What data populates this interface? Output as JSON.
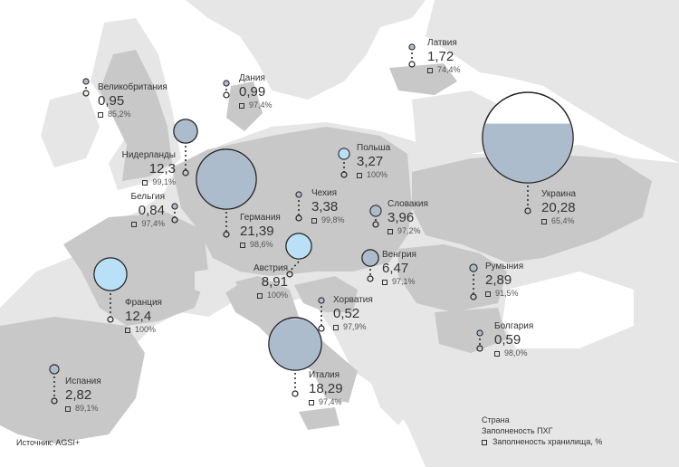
{
  "source": "Источник: AGSI+",
  "legend": {
    "line1": "Страна",
    "line2": "Заполненость ПХГ",
    "line3": "Заполненость хранилища, %"
  },
  "colors": {
    "land_highlight": "#c8c8c8",
    "land_other": "#e6e6e6",
    "sea": "#ffffff",
    "bubble_blue": "#b9e0f7",
    "bubble_gray": "#adbccd"
  },
  "countries": [
    {
      "name": "Латвия",
      "value": "1,72",
      "pct": "74,4%",
      "fill": 0.744
    },
    {
      "name": "Великобритания",
      "value": "0,95",
      "pct": "85,2%",
      "fill": 0.852
    },
    {
      "name": "Дания",
      "value": "0,99",
      "pct": "97,4%",
      "fill": 0.974
    },
    {
      "name": "Нидерланды",
      "value": "12,3",
      "pct": "99,1%",
      "fill": 0.991
    },
    {
      "name": "Польша",
      "value": "3,27",
      "pct": "100%",
      "fill": 1.0
    },
    {
      "name": "Бельгия",
      "value": "0,84",
      "pct": "97,4%",
      "fill": 0.974
    },
    {
      "name": "Германия",
      "value": "21,39",
      "pct": "98,6%",
      "fill": 0.986
    },
    {
      "name": "Чехия",
      "value": "3,38",
      "pct": "99,8%",
      "fill": 0.998
    },
    {
      "name": "Словакия",
      "value": "3,96",
      "pct": "97,2%",
      "fill": 0.972
    },
    {
      "name": "Украина",
      "value": "20,28",
      "pct": "65,4%",
      "fill": 0.654
    },
    {
      "name": "Венгрия",
      "value": "6,47",
      "pct": "97,1%",
      "fill": 0.971
    },
    {
      "name": "Австрия",
      "value": "8,91",
      "pct": "100%",
      "fill": 1.0
    },
    {
      "name": "Франция",
      "value": "12,4",
      "pct": "100%",
      "fill": 1.0
    },
    {
      "name": "Румыния",
      "value": "2,89",
      "pct": "91,5%",
      "fill": 0.915
    },
    {
      "name": "Хорватия",
      "value": "0,52",
      "pct": "97,9%",
      "fill": 0.979
    },
    {
      "name": "Болгария",
      "value": "0,59",
      "pct": "98,0%",
      "fill": 0.98
    },
    {
      "name": "Испания",
      "value": "2,82",
      "pct": "89,1%",
      "fill": 0.891
    },
    {
      "name": "Италия",
      "value": "18,29",
      "pct": "97,4%",
      "fill": 0.974
    }
  ]
}
